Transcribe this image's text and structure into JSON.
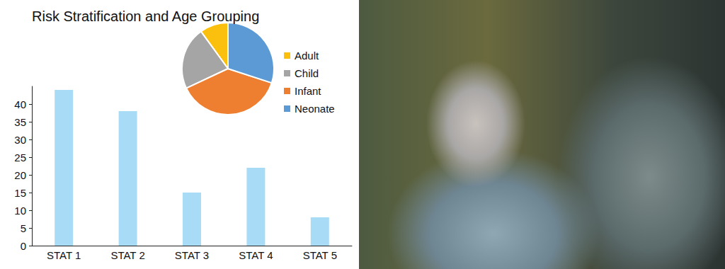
{
  "chart_data": [
    {
      "type": "bar",
      "title": "Risk Stratification and Age Grouping",
      "categories": [
        "STAT 1",
        "STAT 2",
        "STAT 3",
        "STAT 4",
        "STAT 5"
      ],
      "values": [
        44,
        38,
        15,
        22,
        8
      ],
      "color": "#a8dcf6",
      "ylim": [
        0,
        45
      ],
      "yticks": [
        0,
        5,
        10,
        15,
        20,
        25,
        30,
        35,
        40
      ],
      "grid": false
    },
    {
      "type": "pie",
      "categories": [
        "Adult",
        "Child",
        "Infant",
        "Neonate"
      ],
      "values": [
        10,
        22,
        38,
        30
      ],
      "colors": [
        "#fbbf0e",
        "#a5a5a5",
        "#ee7f30",
        "#5b9ad4"
      ],
      "legend": "right"
    }
  ]
}
